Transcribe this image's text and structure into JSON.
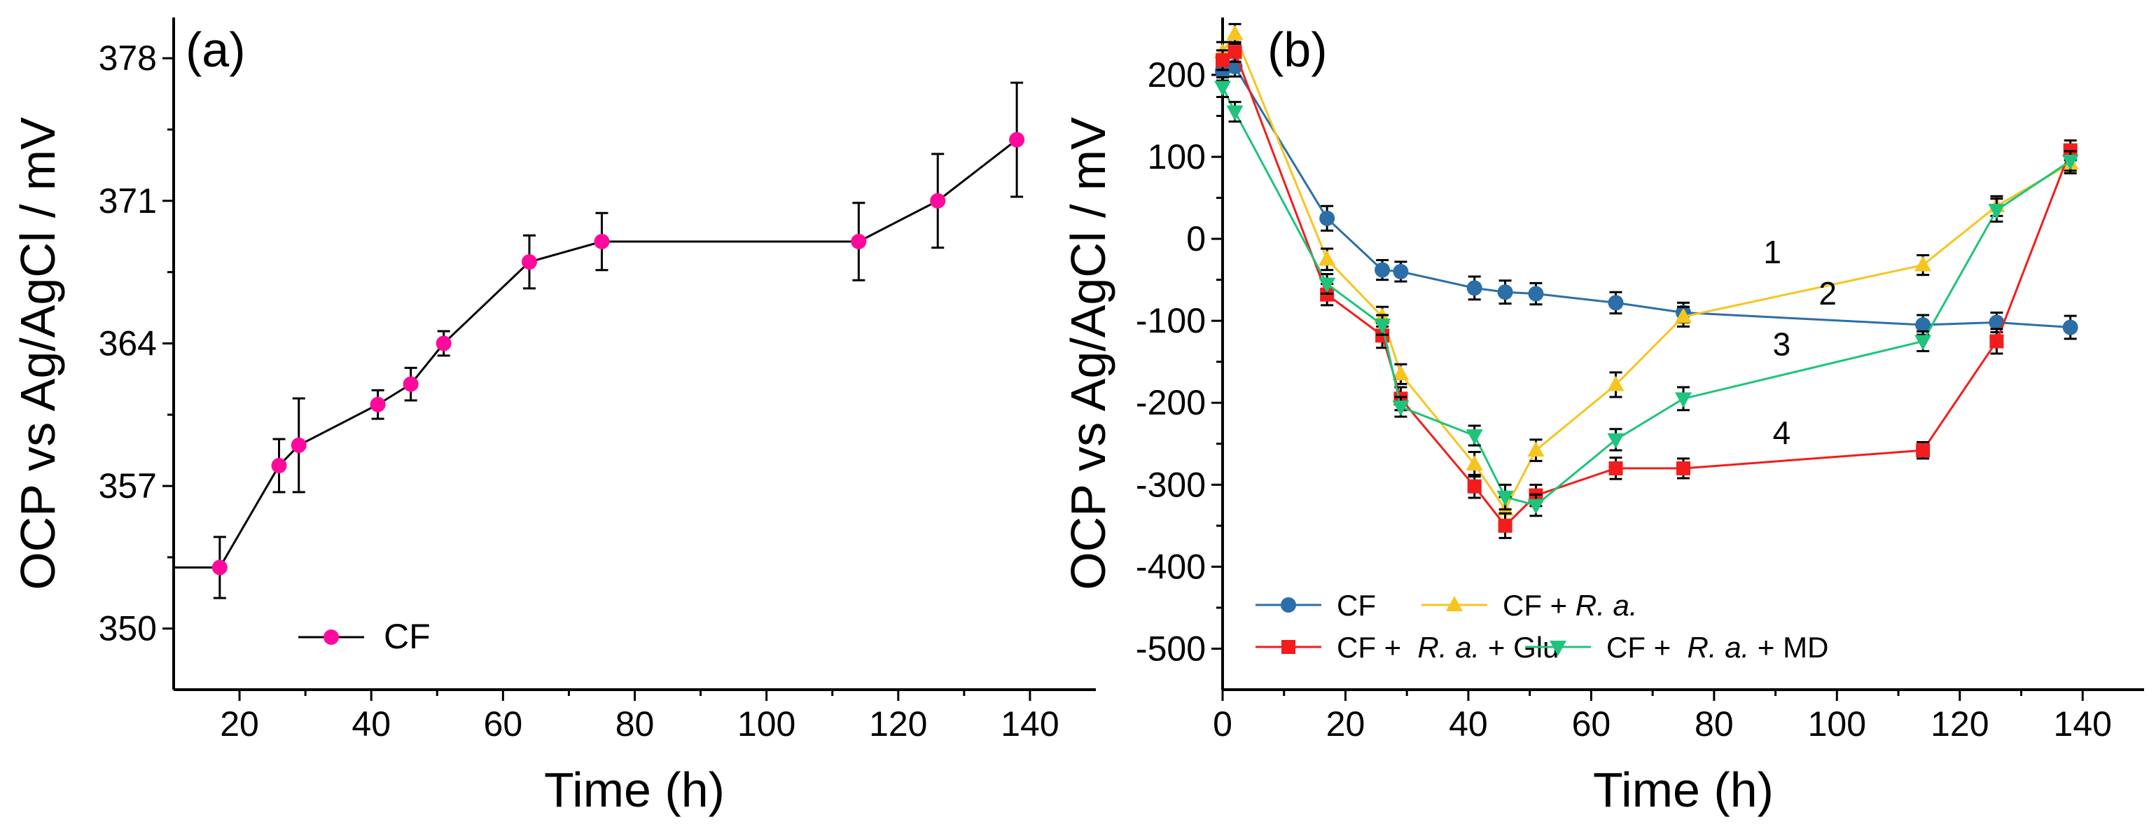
{
  "chart_data": [
    {
      "type": "line",
      "panel_label": "(a)",
      "xlabel": "Time (h)",
      "ylabel": "OCP vs Ag/AgCl / mV",
      "xlim": [
        10,
        150
      ],
      "ylim": [
        347,
        380
      ],
      "xticks": [
        20,
        40,
        60,
        80,
        100,
        120,
        140
      ],
      "yticks": [
        350,
        357,
        364,
        371,
        378
      ],
      "legend_position": "bottom-left",
      "series": [
        {
          "name": "CF",
          "color": "#ff0a9c",
          "marker": "circle",
          "lead_in_from_x": 10,
          "x": [
            17,
            26,
            29,
            41,
            46,
            51,
            64,
            75,
            114,
            126,
            138
          ],
          "y": [
            353.0,
            358.0,
            359.0,
            361.0,
            362.0,
            364.0,
            368.0,
            369.0,
            369.0,
            371.0,
            374.0
          ],
          "err": [
            1.5,
            1.3,
            2.3,
            0.7,
            0.8,
            0.6,
            1.3,
            1.4,
            1.9,
            2.3,
            2.8
          ]
        }
      ]
    },
    {
      "type": "line",
      "panel_label": "(b)",
      "xlabel": "Time (h)",
      "ylabel": "OCP vs Ag/AgCl / mV",
      "xlim": [
        0,
        150
      ],
      "ylim": [
        -550,
        270
      ],
      "xticks": [
        0,
        20,
        40,
        60,
        80,
        100,
        120,
        140
      ],
      "yticks": [
        -500,
        -400,
        -300,
        -200,
        -100,
        0,
        100,
        200
      ],
      "legend_position": "bottom-left",
      "curve_labels": [
        {
          "text": "1",
          "x": 89.5,
          "y": -30
        },
        {
          "text": "2",
          "x": 98.5,
          "y": -80
        },
        {
          "text": "3",
          "x": 91,
          "y": -142
        },
        {
          "text": "4",
          "x": 91,
          "y": -250
        }
      ],
      "series": [
        {
          "name": "CF",
          "name_plain": "CF",
          "name_suffix": "",
          "color": "#2b6ea8",
          "marker": "circle",
          "x": [
            0,
            2,
            17,
            26,
            29,
            41,
            46,
            51,
            64,
            75,
            114,
            126,
            138
          ],
          "y": [
            205,
            210,
            25,
            -38,
            -40,
            -60,
            -65,
            -67,
            -78,
            -90,
            -105,
            -102,
            -108
          ],
          "err": [
            12,
            12,
            15,
            12,
            12,
            14,
            14,
            13,
            13,
            12,
            12,
            12,
            14
          ]
        },
        {
          "name": "CF + R. a.",
          "name_plain": "CF + ",
          "name_italic": "R. a.",
          "name_suffix": "",
          "color": "#f7c51f",
          "marker": "triangle-up",
          "x": [
            0,
            2,
            17,
            26,
            29,
            41,
            46,
            51,
            64,
            75,
            114,
            126,
            138
          ],
          "y": [
            228,
            250,
            -25,
            -95,
            -165,
            -275,
            -330,
            -258,
            -178,
            -95,
            -32,
            40,
            92
          ],
          "err": [
            12,
            12,
            13,
            12,
            12,
            15,
            15,
            13,
            15,
            12,
            12,
            12,
            12
          ]
        },
        {
          "name": "CF + R. a. + Glu",
          "name_plain": "CF +  ",
          "name_italic": "R. a.",
          "name_suffix": " + Glu",
          "color": "#f21d1d",
          "marker": "square",
          "x": [
            0,
            2,
            17,
            26,
            29,
            41,
            46,
            51,
            64,
            75,
            114,
            126,
            138
          ],
          "y": [
            218,
            228,
            -68,
            -118,
            -195,
            -302,
            -350,
            -313,
            -280,
            -280,
            -258,
            -125,
            108
          ],
          "err": [
            12,
            12,
            13,
            15,
            14,
            14,
            15,
            13,
            13,
            12,
            10,
            15,
            12
          ]
        },
        {
          "name": "CF + R. a. + MD",
          "name_plain": "CF +  ",
          "name_italic": "R. a.",
          "name_suffix": " + MD",
          "color": "#1ec47c",
          "marker": "triangle-down",
          "x": [
            0,
            2,
            17,
            26,
            29,
            41,
            46,
            51,
            64,
            75,
            114,
            126,
            138
          ],
          "y": [
            185,
            155,
            -55,
            -105,
            -205,
            -240,
            -315,
            -325,
            -245,
            -195,
            -125,
            35,
            95
          ],
          "err": [
            12,
            12,
            12,
            12,
            12,
            12,
            15,
            13,
            13,
            14,
            12,
            14,
            12
          ]
        }
      ]
    }
  ]
}
